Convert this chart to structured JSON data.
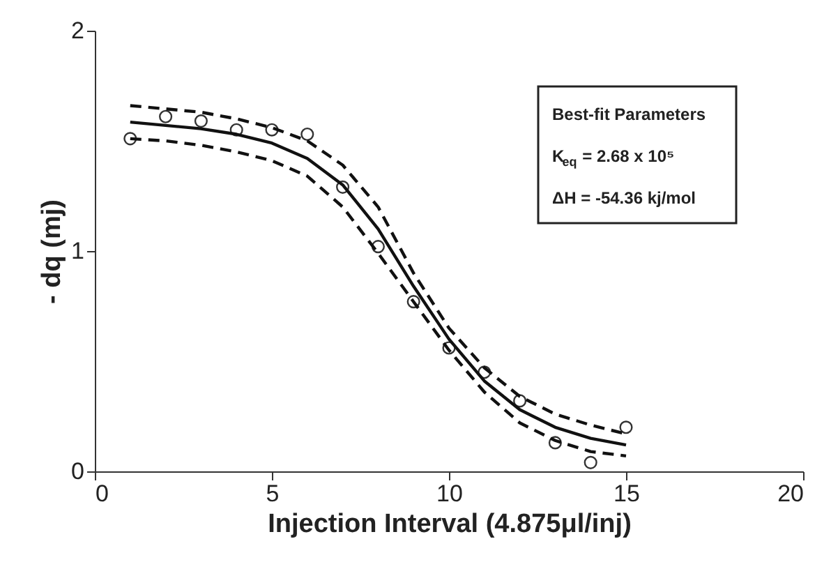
{
  "chart_data": {
    "type": "scatter",
    "xlabel": "Injection Interval (4.875μl/inj)",
    "ylabel": "- dq (mj)",
    "x": [
      1,
      2,
      3,
      4,
      5,
      6,
      7,
      8,
      9,
      10,
      11,
      12,
      13,
      14,
      15
    ],
    "xlim": [
      0,
      20
    ],
    "xticks": [
      0,
      5,
      10,
      15,
      20
    ],
    "ylim": [
      0,
      2
    ],
    "yticks": [
      0,
      1,
      2
    ],
    "grid": false,
    "series": [
      {
        "marker": "circle",
        "color": "#333333",
        "values": [
          1.51,
          1.61,
          1.59,
          1.55,
          1.55,
          1.53,
          1.29,
          1.02,
          0.77,
          0.56,
          0.45,
          0.32,
          0.13,
          0.04,
          0.2
        ]
      },
      {
        "type": "line",
        "line_style": "solid",
        "color": "#111111",
        "values": [
          1.585,
          1.57,
          1.555,
          1.53,
          1.49,
          1.42,
          1.3,
          1.1,
          0.84,
          0.6,
          0.41,
          0.28,
          0.2,
          0.15,
          0.12
        ]
      },
      {
        "type": "line",
        "line_style": "dashed",
        "color": "#111111",
        "values": [
          1.66,
          1.645,
          1.63,
          1.6,
          1.56,
          1.5,
          1.39,
          1.2,
          0.9,
          0.65,
          0.47,
          0.34,
          0.26,
          0.21,
          0.17
        ]
      },
      {
        "type": "line",
        "line_style": "dashed",
        "color": "#111111",
        "values": [
          1.51,
          1.5,
          1.48,
          1.45,
          1.41,
          1.34,
          1.2,
          0.99,
          0.77,
          0.55,
          0.36,
          0.22,
          0.14,
          0.09,
          0.07
        ]
      }
    ],
    "annotations": [
      "Best-fit Parameters",
      "K$_{eq}$ = 2.68 x 10⁵",
      "ΔH = -54.36 kj/mol"
    ]
  }
}
